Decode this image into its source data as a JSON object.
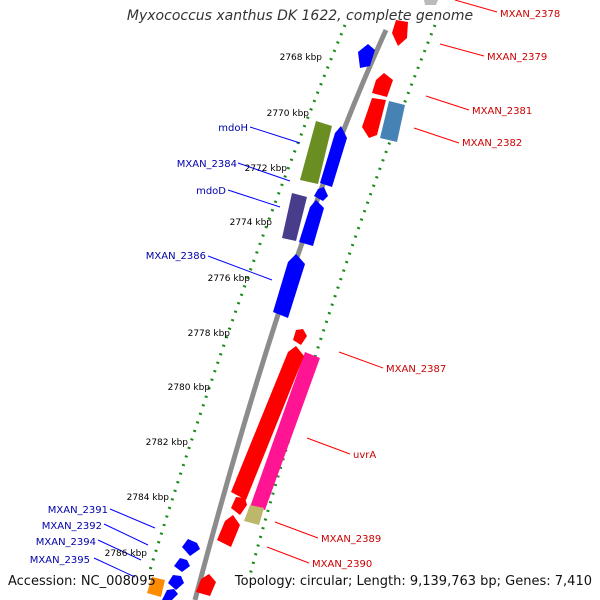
{
  "title": "Myxococcus xanthus DK 1622, complete genome",
  "accession": "Accession: NC_008095",
  "topology": "Topology: circular; Length: 9,139,763 bp; Genes: 7,410",
  "colors": {
    "forward_gene": "#0000ff",
    "reverse_gene": "#ff0000",
    "forward_label": "#0000aa",
    "reverse_label": "#cc0000",
    "tick": "#1a8a1a",
    "backbone": "#8c8c8c"
  },
  "kbp_ticks": [
    "2768 kbp",
    "2770 kbp",
    "2772 kbp",
    "2774 kbp",
    "2776 kbp",
    "2778 kbp",
    "2780 kbp",
    "2782 kbp",
    "2784 kbp",
    "2786 kbp"
  ],
  "forward_labels": [
    "mdoH",
    "MXAN_2384",
    "mdoD",
    "MXAN_2386",
    "MXAN_2391",
    "MXAN_2392",
    "MXAN_2394",
    "MXAN_2395"
  ],
  "reverse_labels": [
    "MXAN_2378",
    "MXAN_2379",
    "MXAN_2381",
    "MXAN_2382",
    "MXAN_2387",
    "uvrA",
    "MXAN_2389",
    "MXAN_2390"
  ]
}
